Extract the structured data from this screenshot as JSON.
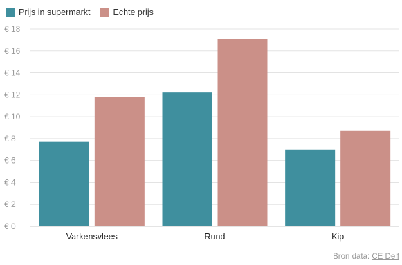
{
  "chart_data": {
    "type": "bar",
    "categories": [
      "Varkensvlees",
      "Rund",
      "Kip"
    ],
    "series": [
      {
        "name": "Prijs in supermarkt",
        "color": "#3f8f9e",
        "values": [
          7.7,
          12.2,
          7.0
        ]
      },
      {
        "name": "Echte prijs",
        "color": "#cb9088",
        "values": [
          11.8,
          17.1,
          8.7
        ]
      }
    ],
    "ylim": [
      0,
      18
    ],
    "y_ticks": [
      0,
      2,
      4,
      6,
      8,
      10,
      12,
      14,
      16,
      18
    ],
    "y_tick_labels": [
      "€ 0",
      "€ 2",
      "€ 4",
      "€ 6",
      "€ 8",
      "€ 10",
      "€ 12",
      "€ 14",
      "€ 16",
      "€ 18"
    ],
    "grid": true,
    "legend_position": "top-left",
    "title": "",
    "xlabel": "",
    "ylabel": ""
  },
  "source": {
    "prefix": "Bron data:",
    "link": "CE Delf"
  }
}
